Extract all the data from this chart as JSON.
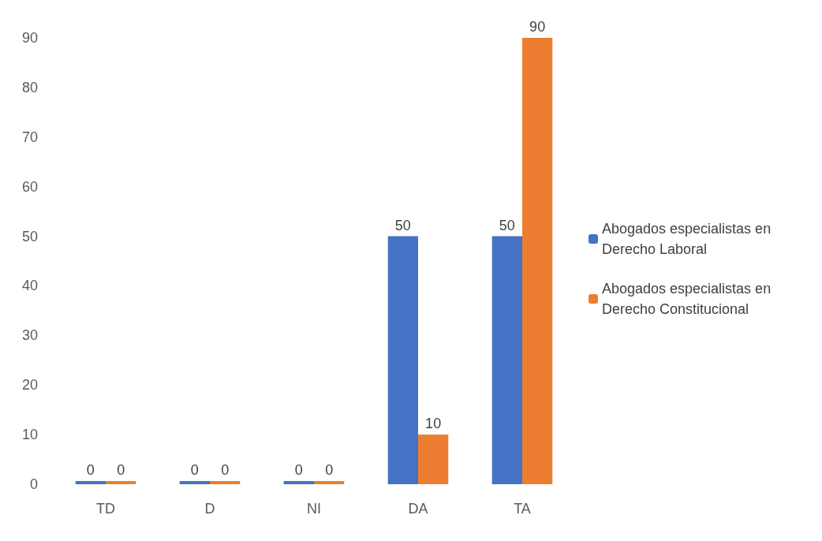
{
  "chart_data": {
    "type": "bar",
    "categories": [
      "TD",
      "D",
      "NI",
      "DA",
      "TA"
    ],
    "series": [
      {
        "name": "Abogados especialistas en Derecho Laboral",
        "color": "#4472c4",
        "values": [
          0,
          0,
          0,
          50,
          50
        ]
      },
      {
        "name": "Abogados especialistas en Derecho Constitucional",
        "color": "#ed7d31",
        "values": [
          0,
          0,
          0,
          10,
          90
        ]
      }
    ],
    "ylim": [
      0,
      90
    ],
    "yticks": [
      0,
      10,
      20,
      30,
      40,
      50,
      60,
      70,
      80,
      90
    ],
    "grid": false,
    "legend": "right",
    "data_labels": true
  }
}
